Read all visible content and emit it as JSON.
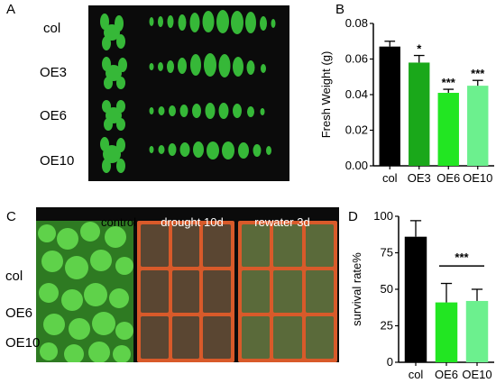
{
  "panels": {
    "A": {
      "letter": "A",
      "row_labels": [
        "col",
        "OE3",
        "OE6",
        "OE10"
      ]
    },
    "B": {
      "letter": "B"
    },
    "C": {
      "letter": "C",
      "column_labels": [
        "control",
        "drought 10d",
        "rewater 3d"
      ],
      "row_labels": [
        "col",
        "OE6",
        "OE10"
      ]
    },
    "D": {
      "letter": "D"
    }
  },
  "chart_data": [
    {
      "id": "B",
      "type": "bar",
      "categories": [
        "col",
        "OE3",
        "OE6",
        "OE10"
      ],
      "values": [
        0.067,
        0.058,
        0.041,
        0.045
      ],
      "errors": [
        0.003,
        0.004,
        0.002,
        0.003
      ],
      "significance": [
        "",
        "*",
        "***",
        "***"
      ],
      "colors": [
        "#000000",
        "#1aa81a",
        "#22e622",
        "#6cf08e"
      ],
      "ylabel": "Fresh Weight (g)",
      "ylim": [
        0.0,
        0.08
      ],
      "yticks": [
        "0.00",
        "0.02",
        "0.04",
        "0.06",
        "0.08"
      ],
      "grid": false
    },
    {
      "id": "D",
      "type": "bar",
      "categories": [
        "col",
        "OE6",
        "OE10"
      ],
      "values": [
        86,
        41,
        42
      ],
      "errors": [
        11,
        13,
        8
      ],
      "colors": [
        "#000000",
        "#22e622",
        "#6cf08e"
      ],
      "bracket_label": "***",
      "ylabel": "survival rate%",
      "ylim": [
        0,
        100
      ],
      "yticks": [
        "0",
        "25",
        "50",
        "75",
        "100"
      ],
      "grid": false
    }
  ]
}
